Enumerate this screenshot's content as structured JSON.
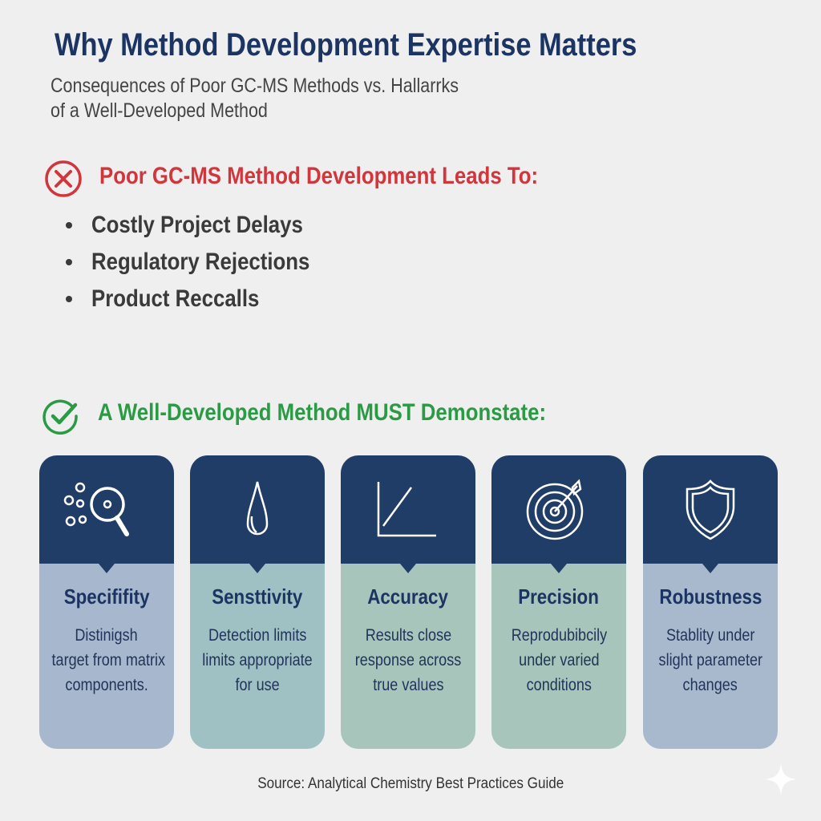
{
  "title": "Why Method Development Expertise Matters",
  "subtitle_line1": "Consequences of Poor GC-MS Methods vs. Hallarrks",
  "subtitle_line2": "of a Well-Developed Method",
  "poor": {
    "heading": "Poor GC-MS Method Development Leads To:",
    "icon": "x-circle-icon",
    "color": "#d0363c",
    "items": [
      "Costly Project Delays",
      "Regulatory Rejections",
      "Product Reccalls"
    ]
  },
  "good": {
    "heading": "A Well-Developed Method MUST Demonstate:",
    "icon": "check-circle-icon",
    "color": "#2a9a44"
  },
  "cards": [
    {
      "title": "Specififity",
      "lines": [
        "Distinigsh",
        "target from matrix",
        "components."
      ],
      "icon": "magnifier-particles-icon",
      "color": "#a7b7cd"
    },
    {
      "title": "Sensttivity",
      "lines": [
        "Detection limits",
        "limits appropriate",
        "for use"
      ],
      "icon": "droplet-icon",
      "color": "#9fc1c4"
    },
    {
      "title": "Accuracy",
      "lines": [
        "Results close",
        "response across",
        "true values"
      ],
      "icon": "linear-graph-icon",
      "color": "#a8c5bc"
    },
    {
      "title": "Precision",
      "lines": [
        "Reprodubibcily",
        "under varied",
        "conditions"
      ],
      "icon": "target-icon",
      "color": "#a7c5ba"
    },
    {
      "title": "Robustness",
      "lines": [
        "Stablity under",
        "slight parameter",
        "changes"
      ],
      "icon": "shield-icon",
      "color": "#a8b8cd"
    }
  ],
  "header_color": "#1f3d66",
  "source": "Source: Analytical Chemistry Best Practices Guide"
}
